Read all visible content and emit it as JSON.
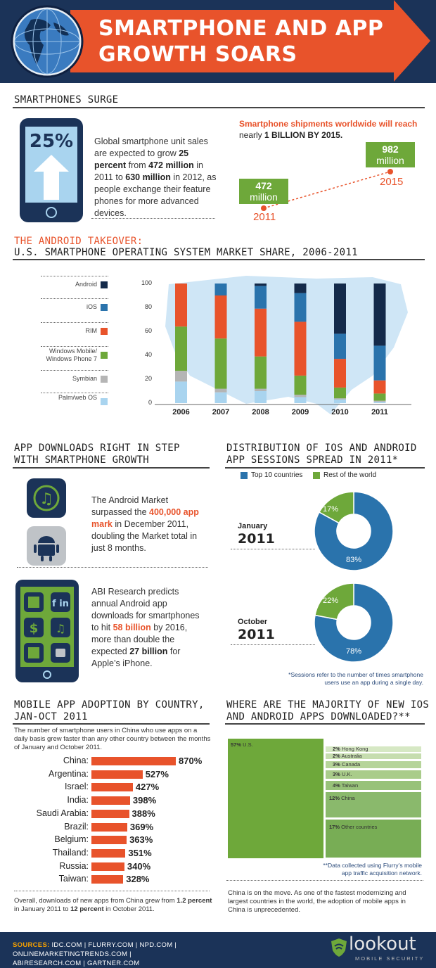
{
  "header": {
    "title_line1": "SMARTPHONE AND APP",
    "title_line2": "GROWTH SOARS"
  },
  "colors": {
    "navy": "#1b3358",
    "orange": "#e8532b",
    "green": "#6ea83a",
    "blue": "#2a73ac",
    "light_blue": "#a9d4ef",
    "dark_navy": "#142a4a",
    "grey": "#b5b5b5",
    "sources_yellow": "#f5a000"
  },
  "section1": {
    "title": "SMARTPHONES SURGE",
    "phone_percent": "25%",
    "para_1": "Global smartphone unit sales are expected to grow ",
    "para_b1": "25 percent",
    "para_2": " from ",
    "para_b2": "472 million",
    "para_3": " in 2011 to ",
    "para_b3": "630 million",
    "para_4": " in 2012, as people exchange their feature phones for more advanced devices.",
    "ship_line1": "Smartphone shipments worldwide will reach",
    "ship_line2a": "nearly ",
    "ship_line2b": "1 BILLION BY 2015.",
    "val_2011_num": "472",
    "val_2011_unit": "million",
    "year_2011": "2011",
    "val_2015_num": "982",
    "val_2015_unit": "million",
    "year_2015": "2015"
  },
  "section2": {
    "title_line1": "THE ANDROID TAKEOVER:",
    "title_line2": "U.S. SMARTPHONE OPERATING SYSTEM MARKET SHARE, 2006-2011",
    "legend": [
      {
        "label": "Android",
        "color": "#142a4a"
      },
      {
        "label": "iOS",
        "color": "#2a73ac"
      },
      {
        "label": "RIM",
        "color": "#e8532b"
      },
      {
        "label": "Windows Mobile/ Windows Phone 7",
        "color": "#6ea83a"
      },
      {
        "label": "Symbian",
        "color": "#b5b5b5"
      },
      {
        "label": "Palm/web OS",
        "color": "#a9d4ef"
      }
    ],
    "y_ticks": [
      "100",
      "80",
      "60",
      "40",
      "20",
      "0"
    ]
  },
  "chart_data": [
    {
      "type": "bar",
      "stacked": true,
      "title": "U.S. SMARTPHONE OPERATING SYSTEM MARKET SHARE, 2006-2011",
      "categories": [
        "2006",
        "2007",
        "2008",
        "2009",
        "2010",
        "2011"
      ],
      "ylim": [
        0,
        100
      ],
      "series": [
        {
          "name": "Palm/web OS",
          "values": [
            18,
            9,
            10,
            5,
            3,
            1
          ]
        },
        {
          "name": "Symbian",
          "values": [
            9,
            3,
            2,
            2,
            1,
            1
          ]
        },
        {
          "name": "Windows Mobile/ Windows Phone 7",
          "values": [
            37,
            42,
            27,
            16,
            9,
            6
          ]
        },
        {
          "name": "RIM",
          "values": [
            36,
            36,
            40,
            45,
            24,
            11
          ]
        },
        {
          "name": "iOS",
          "values": [
            0,
            10,
            19,
            24,
            21,
            29
          ]
        },
        {
          "name": "Android",
          "values": [
            0,
            0,
            2,
            8,
            42,
            52
          ]
        }
      ]
    },
    {
      "type": "line",
      "x": [
        "2011",
        "2015"
      ],
      "values": [
        472,
        982
      ],
      "ylabel": "million"
    },
    {
      "type": "pie",
      "title": "January 2011",
      "categories": [
        "Top 10 countries",
        "Rest of the world"
      ],
      "values": [
        83,
        17
      ]
    },
    {
      "type": "pie",
      "title": "October 2011",
      "categories": [
        "Top 10 countries",
        "Rest of the world"
      ],
      "values": [
        78,
        22
      ]
    },
    {
      "type": "bar",
      "orientation": "horizontal",
      "title": "MOBILE APP ADOPTION BY COUNTRY, JAN-OCT 2011",
      "categories": [
        "China",
        "Argentina",
        "Israel",
        "India",
        "Saudi Arabia",
        "Brazil",
        "Belgium",
        "Thailand",
        "Russia",
        "Taiwan"
      ],
      "values": [
        870,
        527,
        427,
        398,
        388,
        369,
        363,
        351,
        340,
        328
      ]
    },
    {
      "type": "treemap",
      "title": "WHERE ARE THE MAJORITY OF NEW IOS AND ANDROID APPS DOWNLOADED?**",
      "categories": [
        "U.S.",
        "Hong Kong",
        "Australia",
        "Canada",
        "U.K.",
        "Taiwan",
        "China",
        "Other countries"
      ],
      "values": [
        57,
        2,
        2,
        3,
        3,
        4,
        12,
        17
      ]
    }
  ],
  "section3": {
    "title_line1": "APP DOWNLOADS RIGHT IN STEP",
    "title_line2": "WITH SMARTPHONE GROWTH",
    "p1_a": "The Android Market surpassed the ",
    "p1_b": "400,000 app mark",
    "p1_c": " in December 2011, doubling the Market total in just 8 months.",
    "p2_a": "ABI Research predicts annual Android app downloads for smartphones to hit ",
    "p2_b": "58 billion",
    "p2_c": " by 2016, more than double the expected ",
    "p2_d": "27 billion",
    "p2_e": " for Apple’s iPhone."
  },
  "section4": {
    "title_line1": "DISTRIBUTION OF IOS AND ANDROID",
    "title_line2": "APP SESSIONS SPREAD IN 2011*",
    "legend_top10": "Top 10 countries",
    "legend_rest": "Rest of the world",
    "jan_month": "January",
    "jan_year": "2011",
    "jan_small": "17%",
    "jan_big": "83%",
    "oct_month": "October",
    "oct_year": "2011",
    "oct_small": "22%",
    "oct_big": "78%",
    "footnote_1": "*Sessions refer to the number of times smartphone",
    "footnote_2": "users use an app during a single day."
  },
  "section5": {
    "title_line1": "MOBILE APP ADOPTION BY COUNTRY,",
    "title_line2": "JAN-OCT 2011",
    "intro": "The number of smartphone users in China who use apps on a daily basis grew faster than any other country between the months of January and October 2011.",
    "rows": [
      {
        "country": "China:",
        "pct": "870%"
      },
      {
        "country": "Argentina:",
        "pct": "527%"
      },
      {
        "country": "Israel:",
        "pct": "427%"
      },
      {
        "country": "India:",
        "pct": "398%"
      },
      {
        "country": "Saudi Arabia:",
        "pct": "388%"
      },
      {
        "country": "Brazil:",
        "pct": "369%"
      },
      {
        "country": "Belgium:",
        "pct": "363%"
      },
      {
        "country": "Thailand:",
        "pct": "351%"
      },
      {
        "country": "Russia:",
        "pct": "340%"
      },
      {
        "country": "Taiwan:",
        "pct": "328%"
      }
    ],
    "outro_a": "Overall, downloads of new apps from China grew from ",
    "outro_b": "1.2 percent",
    "outro_c": " in January 2011 to ",
    "outro_d": "12 percent",
    "outro_e": " in October 2011."
  },
  "section6": {
    "title_line1": "WHERE ARE THE MAJORITY OF NEW IOS",
    "title_line2": "AND ANDROID APPS DOWNLOADED?**",
    "cells": [
      {
        "pct": "57%",
        "label": "U.S."
      },
      {
        "pct": "2%",
        "label": "Hong Kong"
      },
      {
        "pct": "2%",
        "label": "Australia"
      },
      {
        "pct": "3%",
        "label": "Canada"
      },
      {
        "pct": "3%",
        "label": "U.K."
      },
      {
        "pct": "4%",
        "label": "Taiwan"
      },
      {
        "pct": "12%",
        "label": "China"
      },
      {
        "pct": "17%",
        "label": "Other countries"
      }
    ],
    "footnote_1": "**Data collected using Flurry’s mobile",
    "footnote_2": "app traffic acquisition network.",
    "closing": "China is on the move. As one of the fastest modernizing and largest countries in the world, the adoption of mobile apps in China is unprecedented."
  },
  "footer": {
    "sources_label": "SOURCES:",
    "sources_1": " IDC.COM | FLURRY.COM | NPD.COM | ONLINEMARKETINGTRENDS.COM |",
    "sources_2": "ABIRESEARCH.COM | GARTNER.COM",
    "brand": "lookout",
    "brand_sub": "MOBILE SECURITY"
  }
}
